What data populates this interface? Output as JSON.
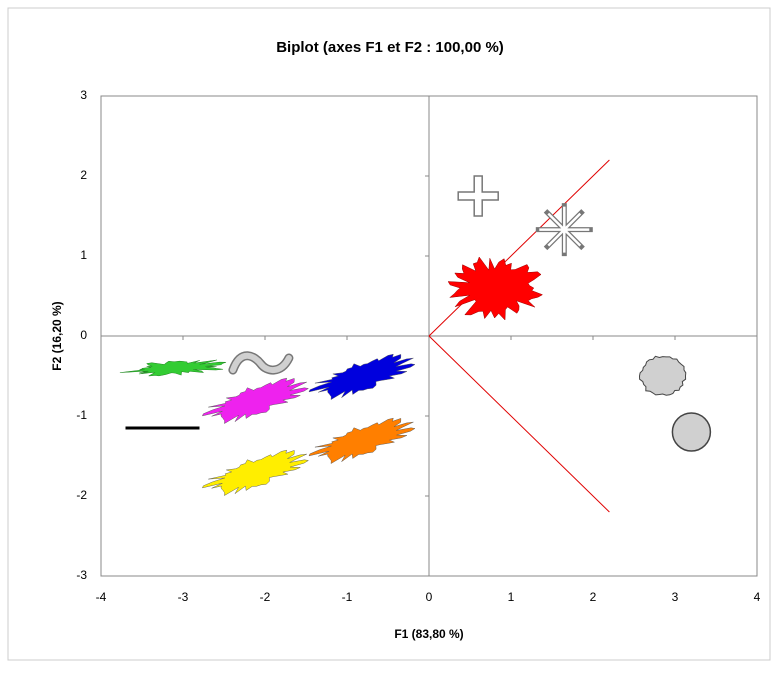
{
  "chart_data": {
    "type": "scatter",
    "title": "Biplot (axes F1 et F2 : 100,00 %)",
    "x_label": "F1 (83,80 %)",
    "y_label": "F2 (16,20 %)",
    "xlim": [
      -4,
      4
    ],
    "ylim": [
      -3,
      3
    ],
    "xticks": [
      -4,
      -3,
      -2,
      -1,
      0,
      1,
      2,
      3,
      4
    ],
    "yticks": [
      -3,
      -2,
      -1,
      0,
      1,
      2,
      3
    ],
    "points": {
      "x": [
        0.6,
        1.65,
        0.8,
        2.85,
        3.2,
        -0.8,
        -0.8,
        -3.1,
        -2.05,
        -2.1,
        -3.25,
        -2.1
      ],
      "values": [
        1.75,
        1.33,
        0.6,
        -0.5,
        -1.2,
        -0.5,
        -1.3,
        -0.4,
        -0.35,
        -0.8,
        -1.15,
        -1.7
      ],
      "colors": [
        "#d0d0d0",
        "#d0d0d0",
        "#ff0000",
        "#d0d0d0",
        "#d0d0d0",
        "#0000dd",
        "#ff7f00",
        "#33cc33",
        "#d0d0d0",
        "#ee22ee",
        "#000000",
        "#ffee00"
      ],
      "markers": [
        "cross",
        "asterisk",
        "blob-round",
        "gear",
        "circle",
        "blob",
        "blob",
        "blob-thin",
        "tilde",
        "blob",
        "line",
        "blob"
      ]
    },
    "vectors": [
      {
        "x": 2.2,
        "y": 2.2,
        "color": "#e00000"
      },
      {
        "x": 2.2,
        "y": -2.2,
        "color": "#e00000"
      }
    ]
  }
}
